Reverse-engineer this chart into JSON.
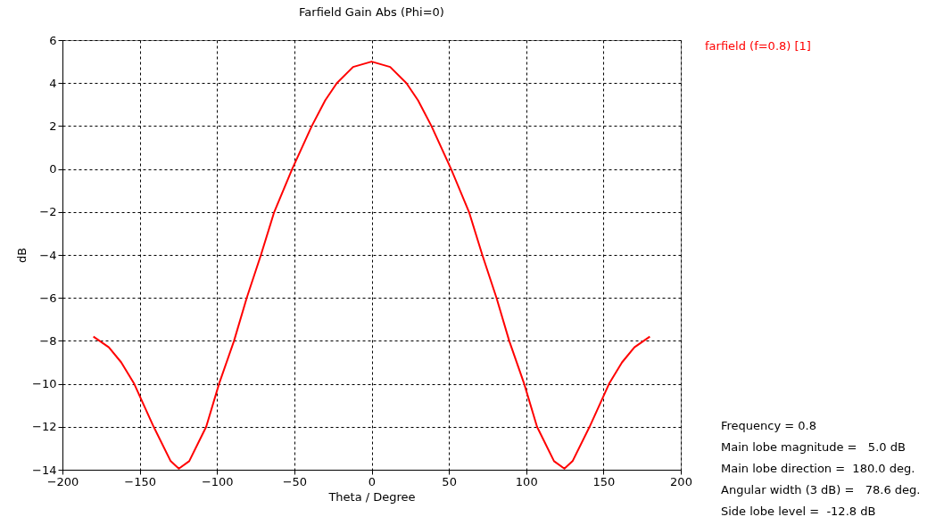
{
  "chart_data": {
    "type": "line",
    "title": "Farfield Gain Abs (Phi=0)",
    "xlabel": "Theta / Degree",
    "ylabel": "dB",
    "x": [
      -180,
      -170,
      -162,
      -153.6,
      -141,
      -130,
      -124.7,
      -118,
      -107,
      -98.7,
      -89,
      -80.8,
      -71.6,
      -63,
      -51.4,
      -38.7,
      -30,
      -22.5,
      -12,
      0,
      12,
      22.5,
      30,
      38.7,
      51.4,
      63,
      71.6,
      80.8,
      89,
      98.7,
      107,
      118,
      124.7,
      130,
      141,
      153.6,
      162,
      170,
      180
    ],
    "series": [
      {
        "name": "farfield (f=0.8) [1]",
        "color": "#ff0000",
        "values": [
          -7.8,
          -8.3,
          -9,
          -10,
          -12,
          -13.6,
          -13.95,
          -13.6,
          -12,
          -10,
          -8,
          -6,
          -4,
          -2,
          0,
          2,
          3.2,
          4,
          4.75,
          5.0,
          4.75,
          4,
          3.2,
          2,
          0,
          -2,
          -4,
          -6,
          -8,
          -10,
          -12,
          -13.6,
          -13.95,
          -13.6,
          -12,
          -10,
          -9,
          -8.3,
          -7.8
        ]
      }
    ],
    "xlim": [
      -200,
      200
    ],
    "xticks": [
      -200,
      -150,
      -100,
      -50,
      0,
      50,
      100,
      150,
      200
    ],
    "ylim": [
      -14,
      6
    ],
    "yticks": [
      -14,
      -12,
      -10,
      -8,
      -6,
      -4,
      -2,
      0,
      2,
      4,
      6
    ],
    "grid": true,
    "legend": "top right",
    "marker": "none",
    "line_style": "solid",
    "annotations": [
      "Frequency = 0.8",
      "Main lobe magnitude =   5.0 dB",
      "Main lobe direction =  180.0 deg.",
      "Angular width (3 dB) =   78.6 deg.",
      "Side lobe level =  -12.8 dB"
    ]
  }
}
